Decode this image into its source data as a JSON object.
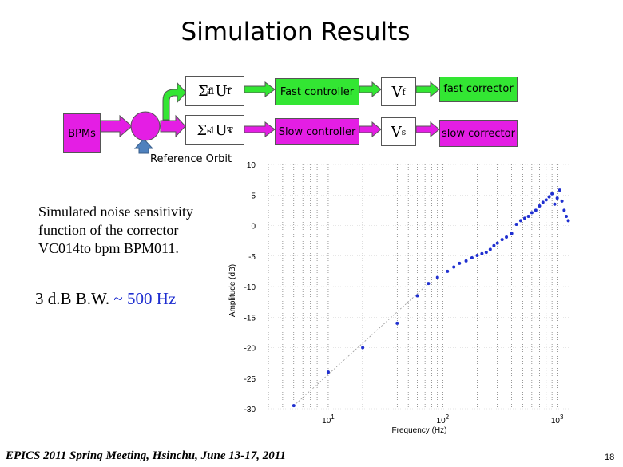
{
  "slide": {
    "title": "Simulation Results",
    "description_lines": [
      "Simulated noise sensitivity",
      "function of the corrector",
      "VC014to bpm BPM011."
    ],
    "bw_text_black": "3 d.B B.W. ",
    "bw_text_colored": "~ 500 Hz",
    "footer": "EPICS 2011 Spring Meeting, Hsinchu, June 13-17, 2011",
    "page_number": "18"
  },
  "diagram": {
    "bpms_label": "BPMs",
    "fast_matrix": "Σf-1Uf",
    "fast_matrix_base_sigma": "Σ",
    "fast_matrix_sub": "f",
    "fast_matrix_sup": "-1",
    "fast_matrix_U": "U",
    "fast_matrix_T": "T",
    "slow_matrix_sub": "s",
    "fast_controller_label": "Fast controller",
    "slow_controller_label": "Slow controller",
    "vf_label": "V",
    "vf_sub": "f",
    "vs_label": "V",
    "vs_sub": "s",
    "fast_corrector_label": "fast corrector",
    "slow_corrector_label": "slow corrector",
    "reference_orbit_label": "Reference Orbit",
    "colors": {
      "magenta": "#e41ee4",
      "green": "#33e633",
      "blue_arrow": "#4f81bd"
    }
  },
  "chart_data": {
    "type": "scatter",
    "title": "",
    "xlabel": "Frequency (Hz)",
    "ylabel": "Amplitude (dB)",
    "x_scale": "log",
    "xlim": [
      3,
      1300
    ],
    "ylim": [
      -30,
      10
    ],
    "y_ticks": [
      "10",
      "5",
      "0",
      "-5",
      "-10",
      "-15",
      "-20",
      "-25",
      "-30"
    ],
    "y_tick_values": [
      10,
      5,
      0,
      -5,
      -10,
      -15,
      -20,
      -25,
      -30
    ],
    "x_tick_values": [
      10,
      100,
      1000
    ],
    "x_tick_base": "10",
    "x_tick_exponents": [
      "1",
      "2",
      "3"
    ],
    "grid": "vertical",
    "series": [
      {
        "color": "#1f2fd0",
        "x": [
          5,
          10,
          20,
          40,
          60,
          75,
          90,
          110,
          125,
          140,
          160,
          180,
          200,
          220,
          240,
          260,
          280,
          300,
          330,
          360,
          400,
          440,
          480,
          520,
          560,
          600,
          650,
          700,
          750,
          800,
          850,
          900,
          950,
          1000,
          1050,
          1100,
          1150,
          1200,
          1250
        ],
        "y": [
          -29.5,
          -24,
          -20,
          -16,
          -11.5,
          -9.5,
          -8.5,
          -7.5,
          -6.8,
          -6.2,
          -5.8,
          -5.3,
          -4.9,
          -4.6,
          -4.4,
          -3.9,
          -3.3,
          -2.9,
          -2.3,
          -1.9,
          -1.3,
          0.2,
          0.8,
          1.2,
          1.5,
          2.1,
          2.5,
          3.2,
          3.8,
          4.2,
          4.7,
          5.2,
          3.5,
          4.5,
          5.8,
          4.0,
          2.5,
          1.5,
          0.8
        ]
      }
    ]
  }
}
